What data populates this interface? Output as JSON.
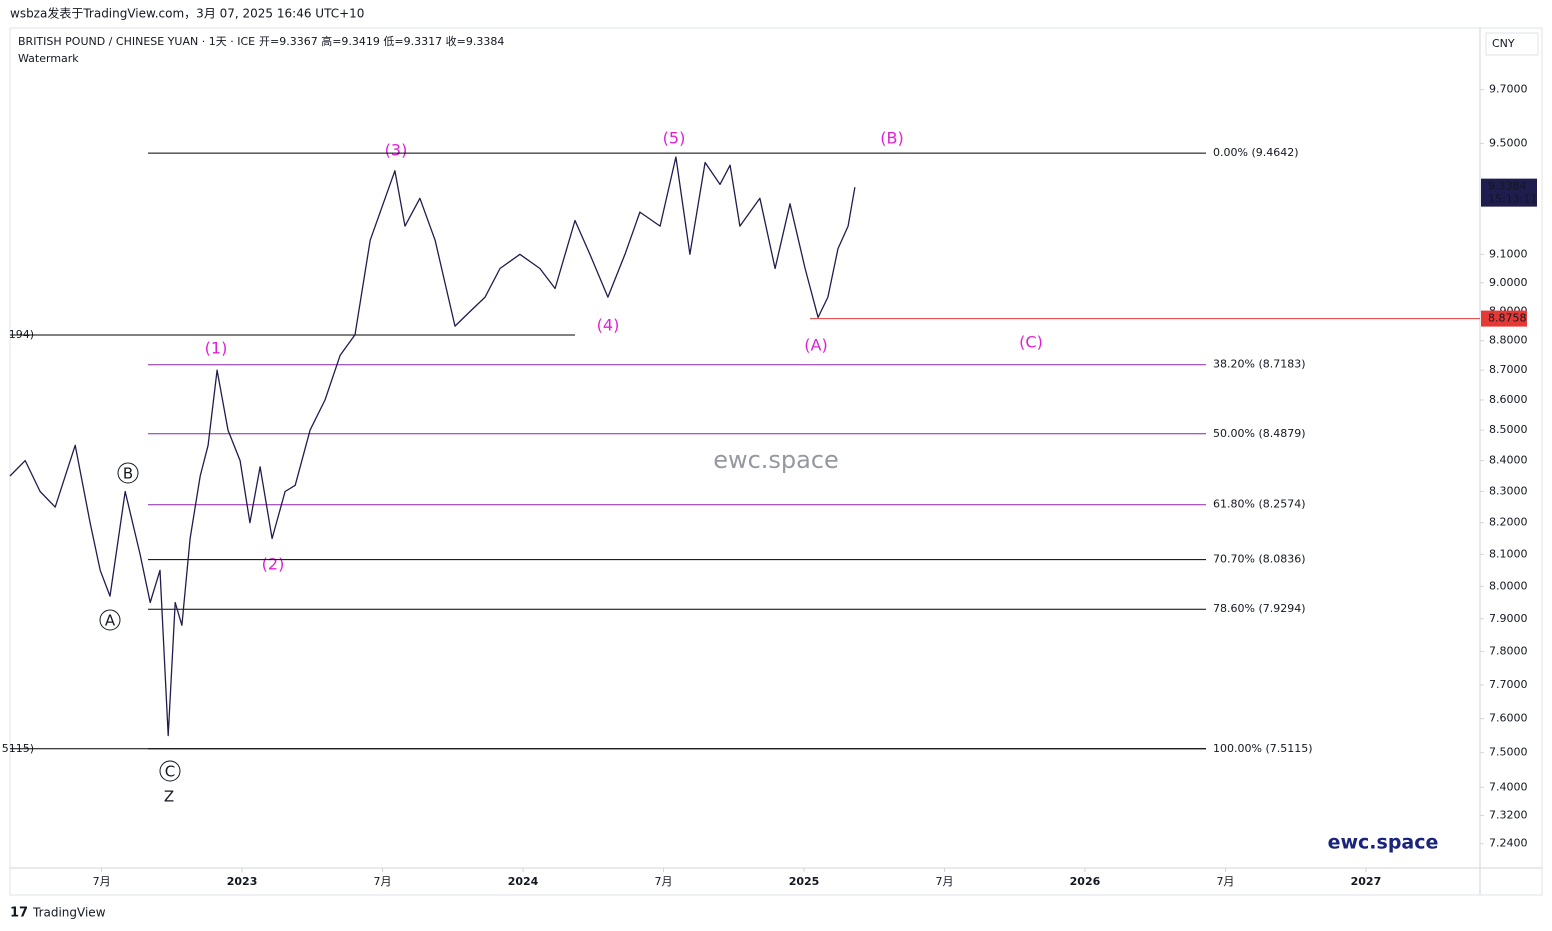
{
  "header": {
    "publisher": "wsbza发表于TradingView.com，3月 07, 2025 16:46 UTC+10",
    "symbol": "BRITISH POUND / CHINESE YUAN · 1天 · ICE",
    "ohlc": "开=9.3367  高=9.3419  低=9.3317  收=9.3384",
    "watermark_label": "Watermark",
    "currency": "CNY",
    "brand": "TradingView"
  },
  "chart_data": {
    "type": "line",
    "log_scale": true,
    "color": "#1f1d4d",
    "x": [
      2022.174,
      2022.228,
      2022.281,
      2022.335,
      2022.406,
      2022.459,
      2022.495,
      2022.53,
      2022.584,
      2022.637,
      2022.673,
      2022.708,
      2022.737,
      2022.762,
      2022.786,
      2022.815,
      2022.851,
      2022.879,
      2022.911,
      2022.95,
      2022.993,
      2023.028,
      2023.064,
      2023.107,
      2023.153,
      2023.189,
      2023.242,
      2023.295,
      2023.349,
      2023.402,
      2023.456,
      2023.509,
      2023.544,
      2023.58,
      2023.633,
      2023.687,
      2023.758,
      2023.811,
      2023.865,
      2023.918,
      2023.989,
      2024.06,
      2024.114,
      2024.185,
      2024.238,
      2024.302,
      2024.363,
      2024.416,
      2024.488,
      2024.544,
      2024.594,
      2024.648,
      2024.701,
      2024.737,
      2024.772,
      2024.843,
      2024.897,
      2024.95,
      2025.004,
      2025.05,
      2025.085,
      2025.121,
      2025.157,
      2025.181
    ],
    "values": [
      8.35,
      8.4,
      8.3,
      8.25,
      8.45,
      8.2,
      8.05,
      7.97,
      8.3,
      8.1,
      7.95,
      8.05,
      7.55,
      7.95,
      7.88,
      8.15,
      8.35,
      8.45,
      8.7,
      8.5,
      8.4,
      8.2,
      8.38,
      8.15,
      8.3,
      8.32,
      8.5,
      8.6,
      8.75,
      8.82,
      9.15,
      9.3,
      9.4,
      9.2,
      9.3,
      9.15,
      8.85,
      8.9,
      8.95,
      9.05,
      9.1,
      9.05,
      8.98,
      9.22,
      9.1,
      8.95,
      9.1,
      9.25,
      9.2,
      9.45,
      9.1,
      9.43,
      9.35,
      9.42,
      9.2,
      9.3,
      9.05,
      9.28,
      9.05,
      8.88,
      8.95,
      9.12,
      9.2,
      9.34
    ],
    "xlim": [
      2022.174,
      2027.406
    ],
    "xticks": [
      {
        "value": 2022.5,
        "label": "7月"
      },
      2023,
      {
        "value": 2023.5,
        "label": "7月"
      },
      2024,
      {
        "value": 2024.5,
        "label": "7月"
      },
      2025,
      {
        "value": 2025.5,
        "label": "7月"
      },
      2026,
      {
        "value": 2026.5,
        "label": "7月"
      },
      2027
    ],
    "ylim": [
      7.172,
      9.935
    ],
    "yticks": [
      {
        "value": 9.7,
        "label": "9.7000"
      },
      {
        "value": 9.5,
        "label": "9.5000"
      },
      {
        "value": 9.1,
        "label": "9.1000"
      },
      {
        "value": 9.0,
        "label": "9.0000"
      },
      {
        "value": 8.9,
        "label": "8.9000"
      },
      {
        "value": 8.8,
        "label": "8.8000"
      },
      {
        "value": 8.7,
        "label": "8.7000"
      },
      {
        "value": 8.6,
        "label": "8.6000"
      },
      {
        "value": 8.5,
        "label": "8.5000"
      },
      {
        "value": 8.4,
        "label": "8.4000"
      },
      {
        "value": 8.3,
        "label": "8.3000"
      },
      {
        "value": 8.2,
        "label": "8.2000"
      },
      {
        "value": 8.1,
        "label": "8.1000"
      },
      {
        "value": 8.0,
        "label": "8.0000"
      },
      {
        "value": 7.9,
        "label": "7.9000"
      },
      {
        "value": 7.8,
        "label": "7.8000"
      },
      {
        "value": 7.7,
        "label": "7.7000"
      },
      {
        "value": 7.6,
        "label": "7.6000"
      },
      {
        "value": 7.5,
        "label": "7.5000"
      },
      {
        "value": 7.4,
        "label": "7.4000"
      },
      {
        "value": 7.32,
        "label": "7.3200"
      },
      {
        "value": 7.24,
        "label": "7.2400"
      }
    ],
    "fib_levels": [
      {
        "label": "0.00% (9.4642)",
        "value": 9.4642,
        "color": "#000000"
      },
      {
        "label": "38.20% (8.7183)",
        "value": 8.7183,
        "color": "#8e24aa"
      },
      {
        "label": "50.00% (8.4879)",
        "value": 8.4879,
        "color": "#8e24aa"
      },
      {
        "label": "61.80% (8.2574)",
        "value": 8.2574,
        "color": "#8e24aa"
      },
      {
        "label": "70.70% (8.0836)",
        "value": 8.0836,
        "color": "#000000"
      },
      {
        "label": "78.60% (7.9294)",
        "value": 7.9294,
        "color": "#000000"
      },
      {
        "label": "100.00% (7.5115)",
        "value": 7.5115,
        "color": "#000000"
      }
    ],
    "left_levels": [
      {
        "label": "194)",
        "value": 8.8194
      },
      {
        "label": "5115)",
        "value": 7.5115
      }
    ],
    "stop_level": {
      "value": 8.8758,
      "label": "8.8758",
      "color": "#e53935"
    },
    "last_price": 9.3384,
    "countdown": "15:13:11",
    "wave_labels": [
      "(1)",
      "(2)",
      "(3)",
      "(4)",
      "(5)",
      "(A)",
      "(B)",
      "(C)"
    ],
    "circle_labels": [
      "A",
      "B",
      "C"
    ],
    "z_label": "Z",
    "watermark": "ewc.space",
    "brand_mark": "ewc.space"
  }
}
